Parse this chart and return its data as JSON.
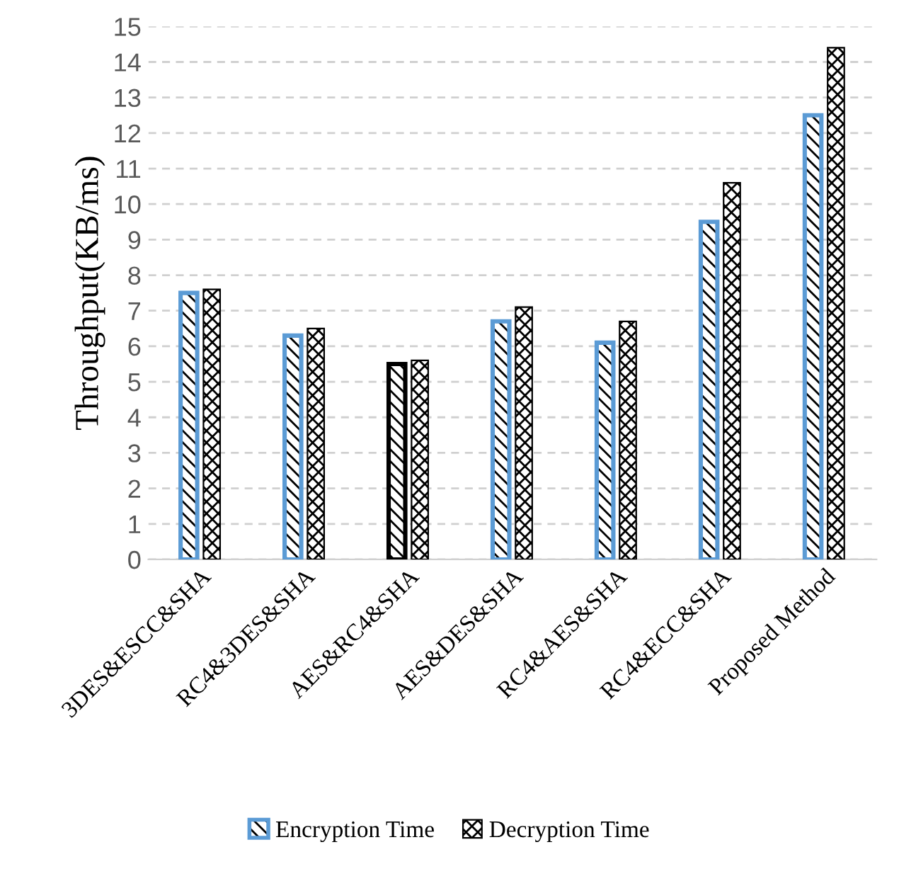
{
  "chart_data": {
    "type": "bar",
    "ylabel": "Throughput(KB/ms)",
    "categories": [
      "3DES&ESCC&SHA",
      "RC4&3DES&SHA",
      "AES&RC4&SHA",
      "AES&DES&SHA",
      "RC4&AES&SHA",
      "RC4&ECC&SHA",
      "Proposed Method"
    ],
    "series": [
      {
        "name": "Encryption Time",
        "color": "#5b9bd5",
        "colors": [
          "#5b9bd5",
          "#5b9bd5",
          "#000000",
          "#5b9bd5",
          "#5b9bd5",
          "#5b9bd5",
          "#5b9bd5"
        ],
        "values": [
          7.5,
          6.3,
          5.5,
          6.7,
          6.1,
          9.5,
          12.5
        ]
      },
      {
        "name": "Decryption Time",
        "color": "#000000",
        "values": [
          7.6,
          6.5,
          5.6,
          7.1,
          6.7,
          10.6,
          14.4
        ]
      }
    ],
    "ylim": [
      0,
      15
    ],
    "yticks": [
      0,
      1,
      2,
      3,
      4,
      5,
      6,
      7,
      8,
      9,
      10,
      11,
      12,
      13,
      14,
      15
    ],
    "grid": "y",
    "legend": "bottom"
  }
}
